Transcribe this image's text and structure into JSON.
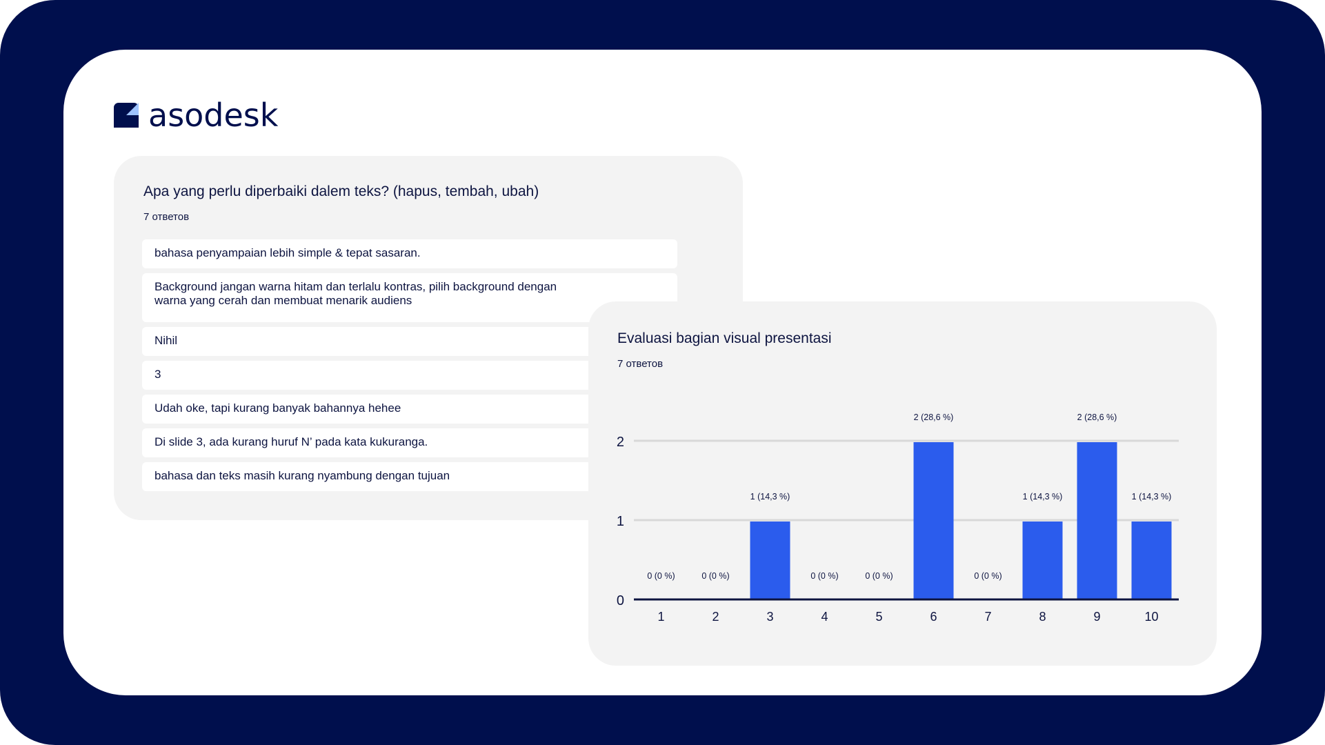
{
  "brand": {
    "name": "asodesk"
  },
  "colors": {
    "frame": "#000f4d",
    "card": "#f3f3f3",
    "bar": "#2b5ced",
    "text": "#0d1440",
    "logo_light": "#9fc4ff"
  },
  "text_question": {
    "title": "Apa yang perlu diperbaiki dalem teks? (hapus, tembah, ubah)",
    "count": "7 ответов",
    "responses": [
      "bahasa penyampaian lebih simple & tepat sasaran.",
      "Background jangan warna hitam dan terlalu kontras, pilih background dengan warna yang cerah dan membuat menarik audiens",
      "Nihil",
      "3",
      "Udah oke, tapi kurang banyak bahannya hehee",
      "Di slide 3, ada kurang huruf N’ pada kata kukuranga.",
      "bahasa dan teks masih kurang nyambung dengan tujuan"
    ]
  },
  "chart_question": {
    "title": "Evaluasi bagian visual presentasi",
    "count": "7 ответов"
  },
  "chart_data": {
    "type": "bar",
    "categories": [
      "1",
      "2",
      "3",
      "4",
      "5",
      "6",
      "7",
      "8",
      "9",
      "10"
    ],
    "values": [
      0,
      0,
      1,
      0,
      0,
      2,
      0,
      1,
      2,
      1
    ],
    "data_labels": [
      "0 (0 %)",
      "0 (0 %)",
      "1 (14,3 %)",
      "0 (0 %)",
      "0 (0 %)",
      "2 (28,6 %)",
      "0 (0 %)",
      "1 (14,3 %)",
      "2 (28,6 %)",
      "1 (14,3 %)"
    ],
    "yticks": [
      "0",
      "1",
      "2"
    ],
    "ylim": [
      0,
      2
    ],
    "grid": true
  }
}
